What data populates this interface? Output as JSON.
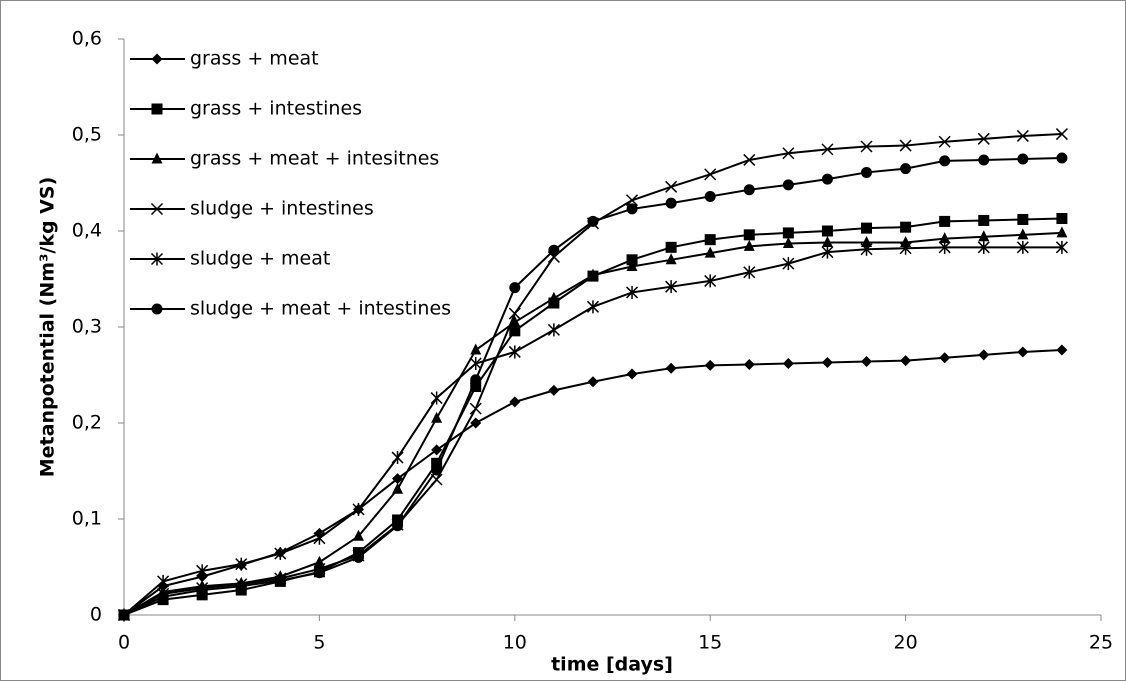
{
  "chart_data": {
    "type": "line",
    "x_label": "time [days]",
    "y_label": "Metanpotential (Nm³/kg VS)",
    "x": [
      0,
      1,
      2,
      3,
      4,
      5,
      6,
      7,
      8,
      9,
      10,
      11,
      12,
      13,
      14,
      15,
      16,
      17,
      18,
      19,
      20,
      21,
      22,
      23,
      24
    ],
    "xlim": [
      0,
      25
    ],
    "xticks": [
      0,
      5,
      10,
      15,
      20,
      25
    ],
    "ylim": [
      0,
      0.6
    ],
    "yticks": [
      0,
      {
        "value": 0.1,
        "label": "0,1"
      },
      {
        "value": 0.2,
        "label": "0,2"
      },
      {
        "value": 0.3,
        "label": "0,3"
      },
      {
        "value": 0.4,
        "label": "0,4"
      },
      {
        "value": 0.5,
        "label": "0,5"
      },
      {
        "value": 0.6,
        "label": "0,6"
      }
    ],
    "grid": false,
    "legend": "top-left",
    "series": [
      {
        "name": "grass + meat",
        "color": "#000000",
        "marker": "diamond",
        "values": [
          0,
          0.03,
          0.04,
          0.052,
          0.065,
          0.085,
          0.11,
          0.142,
          0.172,
          0.2,
          0.222,
          0.234,
          0.243,
          0.251,
          0.257,
          0.26,
          0.261,
          0.262,
          0.263,
          0.264,
          0.265,
          0.268,
          0.271,
          0.274,
          0.276
        ]
      },
      {
        "name": "grass + intestines",
        "color": "#000000",
        "marker": "square",
        "values": [
          0,
          0.016,
          0.021,
          0.026,
          0.035,
          0.045,
          0.065,
          0.099,
          0.158,
          0.238,
          0.296,
          0.325,
          0.353,
          0.37,
          0.383,
          0.391,
          0.396,
          0.398,
          0.4,
          0.403,
          0.404,
          0.41,
          0.411,
          0.412,
          0.413
        ]
      },
      {
        "name": "grass + meat + intesitnes",
        "color": "#000000",
        "marker": "triangle",
        "values": [
          0,
          0.024,
          0.03,
          0.033,
          0.04,
          0.055,
          0.082,
          0.131,
          0.205,
          0.276,
          0.305,
          0.33,
          0.354,
          0.363,
          0.37,
          0.377,
          0.384,
          0.387,
          0.388,
          0.388,
          0.388,
          0.392,
          0.394,
          0.396,
          0.398
        ]
      },
      {
        "name": "sludge + intestines",
        "color": "#000000",
        "marker": "x",
        "values": [
          0,
          0.022,
          0.028,
          0.032,
          0.038,
          0.048,
          0.062,
          0.094,
          0.141,
          0.215,
          0.314,
          0.373,
          0.408,
          0.432,
          0.446,
          0.459,
          0.474,
          0.481,
          0.485,
          0.488,
          0.489,
          0.493,
          0.496,
          0.499,
          0.501
        ]
      },
      {
        "name": "sludge + meat",
        "color": "#000000",
        "marker": "star",
        "values": [
          0,
          0.035,
          0.046,
          0.053,
          0.064,
          0.08,
          0.11,
          0.164,
          0.226,
          0.262,
          0.274,
          0.297,
          0.321,
          0.336,
          0.342,
          0.348,
          0.357,
          0.366,
          0.378,
          0.381,
          0.382,
          0.383,
          0.383,
          0.383,
          0.383
        ]
      },
      {
        "name": "sludge + meat + intestines",
        "color": "#000000",
        "marker": "circle",
        "values": [
          0,
          0.019,
          0.026,
          0.03,
          0.036,
          0.044,
          0.06,
          0.093,
          0.151,
          0.245,
          0.341,
          0.38,
          0.41,
          0.423,
          0.429,
          0.436,
          0.443,
          0.448,
          0.454,
          0.461,
          0.465,
          0.473,
          0.474,
          0.475,
          0.476
        ]
      }
    ]
  }
}
